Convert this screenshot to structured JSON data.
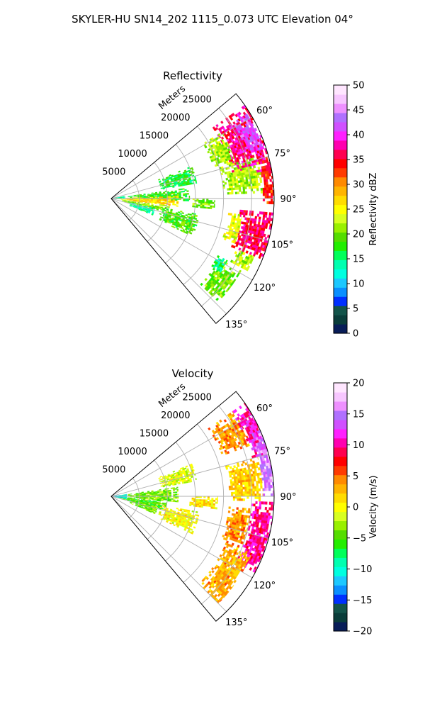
{
  "figure": {
    "suptitle": "SKYLER-HU  SN14_202  1115_0.073 UTC Elevation 04°"
  },
  "chart_data": [
    {
      "type": "heatmap",
      "projection": "polar-sector",
      "title": "Reflectivity",
      "radial_label": "Meters",
      "radial_ticks": [
        "5000",
        "10000",
        "15000",
        "20000",
        "25000"
      ],
      "radial_tick_values": [
        5000,
        10000,
        15000,
        20000,
        25000
      ],
      "range_max_m": 29000,
      "azimuth_range_deg": [
        50,
        140
      ],
      "azimuth_ticks": [
        "60°",
        "75°",
        "90°",
        "105°",
        "120°",
        "135°"
      ],
      "azimuth_tick_values": [
        60,
        75,
        90,
        105,
        120,
        135
      ],
      "grid": true,
      "colorbar": {
        "label": "Reflectivity dBZ",
        "range": [
          0,
          50
        ],
        "ticks": [
          "0",
          "5",
          "10",
          "15",
          "20",
          "25",
          "30",
          "35",
          "40",
          "45",
          "50"
        ],
        "tick_values": [
          0,
          5,
          10,
          15,
          20,
          25,
          30,
          35,
          40,
          45,
          50
        ],
        "colors": [
          "#081d58",
          "#0a3d3a",
          "#13544a",
          "#0030ff",
          "#0a8fff",
          "#1cc8ff",
          "#00ffe0",
          "#00ffb0",
          "#00ff5a",
          "#22ee00",
          "#55dd00",
          "#99f000",
          "#d8ff20",
          "#ffff00",
          "#ffdc00",
          "#ffb400",
          "#ff8a00",
          "#ff3b00",
          "#ff0000",
          "#ff0050",
          "#ff00b0",
          "#ff20ff",
          "#d050ff",
          "#b070ff",
          "#ee90ff",
          "#f7c6ff",
          "#ffe6ff"
        ]
      },
      "echoes": [
        {
          "az": [
            55,
            80
          ],
          "r": [
            22000,
            29000
          ],
          "value": 37
        },
        {
          "az": [
            58,
            72
          ],
          "r": [
            25500,
            28500
          ],
          "value": 42
        },
        {
          "az": [
            75,
            92
          ],
          "r": [
            27000,
            29000
          ],
          "value": 34
        },
        {
          "az": [
            59,
            74
          ],
          "r": [
            19000,
            23000
          ],
          "value": 22
        },
        {
          "az": [
            74,
            88
          ],
          "r": [
            20000,
            27000
          ],
          "value": 22
        },
        {
          "az": [
            95,
            112
          ],
          "r": [
            23000,
            29000
          ],
          "value": 36
        },
        {
          "az": [
            97,
            110
          ],
          "r": [
            21000,
            23500
          ],
          "value": 24
        },
        {
          "az": [
            112,
            118
          ],
          "r": [
            24000,
            27500
          ],
          "value": 22
        },
        {
          "az": [
            119,
            134
          ],
          "r": [
            22000,
            26500
          ],
          "value": 20
        },
        {
          "az": [
            118,
            124
          ],
          "r": [
            21500,
            23500
          ],
          "value": 15
        },
        {
          "az": [
            68,
            80
          ],
          "r": [
            9000,
            15500
          ],
          "value": 17
        },
        {
          "az": [
            82,
            92
          ],
          "r": [
            3000,
            14000
          ],
          "value": 18
        },
        {
          "az": [
            88,
            97
          ],
          "r": [
            1500,
            12000
          ],
          "value": 27
        },
        {
          "az": [
            97,
            104
          ],
          "r": [
            2000,
            10500
          ],
          "value": 21
        },
        {
          "az": [
            102,
            112
          ],
          "r": [
            3500,
            8000
          ],
          "value": 14
        },
        {
          "az": [
            80,
            92
          ],
          "r": [
            500,
            2500
          ],
          "value": 14
        },
        {
          "az": [
            100,
            115
          ],
          "r": [
            9000,
            16000
          ],
          "value": 19
        },
        {
          "az": [
            90,
            96
          ],
          "r": [
            14500,
            18500
          ],
          "value": 20
        }
      ]
    },
    {
      "type": "heatmap",
      "projection": "polar-sector",
      "title": "Velocity",
      "radial_label": "Meters",
      "radial_ticks": [
        "5000",
        "10000",
        "15000",
        "20000",
        "25000"
      ],
      "radial_tick_values": [
        5000,
        10000,
        15000,
        20000,
        25000
      ],
      "range_max_m": 29000,
      "azimuth_range_deg": [
        50,
        140
      ],
      "azimuth_ticks": [
        "60°",
        "75°",
        "90°",
        "105°",
        "120°",
        "135°"
      ],
      "azimuth_tick_values": [
        60,
        75,
        90,
        105,
        120,
        135
      ],
      "grid": true,
      "colorbar": {
        "label": "Velocity (m/s)",
        "range": [
          -20,
          20
        ],
        "ticks": [
          "−20",
          "−15",
          "−10",
          "−5",
          "0",
          "5",
          "10",
          "15",
          "20"
        ],
        "tick_values": [
          -20,
          -15,
          -10,
          -5,
          0,
          5,
          10,
          15,
          20
        ],
        "colors": [
          "#081d58",
          "#0a3d3a",
          "#13544a",
          "#0030ff",
          "#0a8fff",
          "#1cc8ff",
          "#00ffe0",
          "#00ffb0",
          "#00ff5a",
          "#22ee00",
          "#55dd00",
          "#99f000",
          "#d8ff20",
          "#ffff00",
          "#ffdc00",
          "#ffb400",
          "#ff8a00",
          "#ff3b00",
          "#ff0000",
          "#ff0050",
          "#ff00b0",
          "#ff20ff",
          "#d050ff",
          "#b070ff",
          "#ee90ff",
          "#f7c6ff",
          "#ffe6ff"
        ]
      },
      "echoes": [
        {
          "az": [
            55,
            70
          ],
          "r": [
            21000,
            26500
          ],
          "value": 4
        },
        {
          "az": [
            55,
            75
          ],
          "r": [
            26000,
            29000
          ],
          "value": 11
        },
        {
          "az": [
            66,
            90
          ],
          "r": [
            27000,
            29000
          ],
          "value": 15
        },
        {
          "az": [
            75,
            92
          ],
          "r": [
            21000,
            27000
          ],
          "value": 2
        },
        {
          "az": [
            92,
            118
          ],
          "r": [
            25000,
            29000
          ],
          "value": 10
        },
        {
          "az": [
            95,
            112
          ],
          "r": [
            21000,
            25000
          ],
          "value": 4
        },
        {
          "az": [
            112,
            135
          ],
          "r": [
            22000,
            27000
          ],
          "value": 3
        },
        {
          "az": [
            68,
            80
          ],
          "r": [
            9000,
            15500
          ],
          "value": -1
        },
        {
          "az": [
            82,
            95
          ],
          "r": [
            3000,
            12000
          ],
          "value": -4
        },
        {
          "az": [
            95,
            105
          ],
          "r": [
            1500,
            10000
          ],
          "value": -5
        },
        {
          "az": [
            82,
            100
          ],
          "r": [
            300,
            2800
          ],
          "value": -11
        },
        {
          "az": [
            102,
            112
          ],
          "r": [
            3500,
            8500
          ],
          "value": -4
        },
        {
          "az": [
            100,
            115
          ],
          "r": [
            9000,
            16000
          ],
          "value": 0
        },
        {
          "az": [
            90,
            97
          ],
          "r": [
            14000,
            19000
          ],
          "value": 1
        }
      ]
    }
  ]
}
